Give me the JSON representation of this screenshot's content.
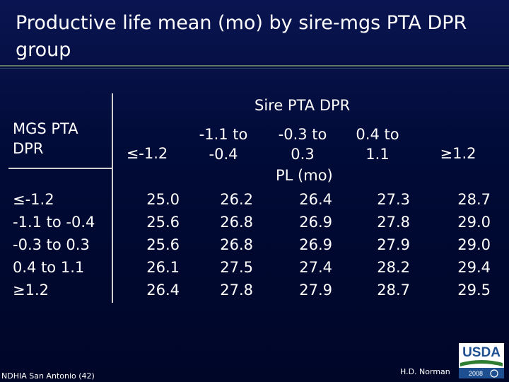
{
  "slide": {
    "title": "Productive life mean (mo) by sire-mgs PTA DPR group",
    "sire_header": "Sire PTA DPR",
    "mgs_header": "MGS PTA DPR",
    "unit_label": "PL (mo)",
    "columns": [
      "≤-1.2",
      "-1.1 to -0.4",
      "-0.3 to 0.3",
      "0.4 to 1.1",
      "≥1.2"
    ],
    "rows": [
      {
        "label": "≤-1.2",
        "values": [
          "25.0",
          "26.2",
          "26.4",
          "27.3",
          "28.7"
        ]
      },
      {
        "label": "-1.1 to -0.4",
        "values": [
          "25.6",
          "26.8",
          "26.9",
          "27.8",
          "29.0"
        ]
      },
      {
        "label": "-0.3 to 0.3",
        "values": [
          "25.6",
          "26.8",
          "26.9",
          "27.9",
          "29.0"
        ]
      },
      {
        "label": "0.4 to 1.1",
        "values": [
          "26.1",
          "27.5",
          "27.4",
          "28.2",
          "29.4"
        ]
      },
      {
        "label": "≥1.2",
        "values": [
          "26.4",
          "27.8",
          "27.9",
          "28.7",
          "29.5"
        ]
      }
    ],
    "footer_left": "NDHIA San Antonio (42)",
    "footer_right": "H.D. Norman",
    "logo_text": "USDA",
    "logo_year": "2008"
  },
  "colors": {
    "background": "#000a35",
    "text": "#ffffff",
    "rule": "#d0d0d0",
    "usda_blue": "#1d4f91",
    "usda_green": "#2e7d32"
  }
}
